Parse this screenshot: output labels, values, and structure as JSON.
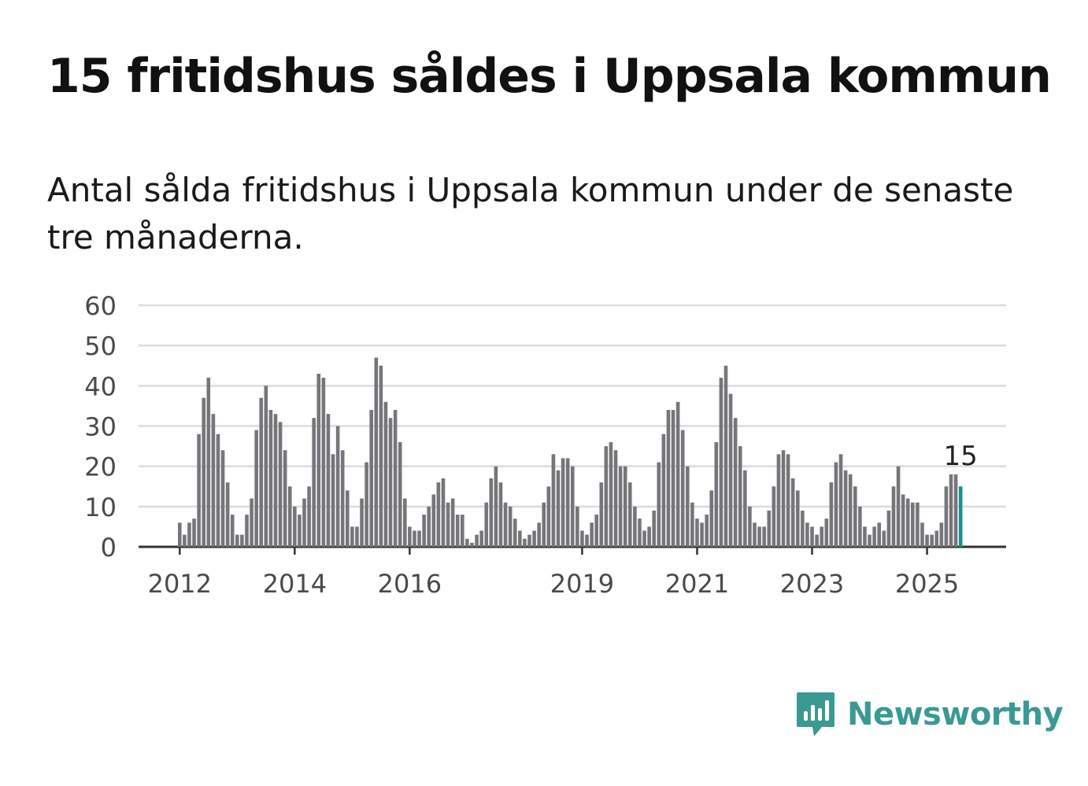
{
  "header": {
    "title": "15 fritidshus såldes i Uppsala kommun",
    "subtitle": "Antal sålda fritidshus i Uppsala kommun under de senaste tre månaderna."
  },
  "brand": {
    "name": "Newsworthy",
    "icon": "newsworthy-logo-icon",
    "color": "#3a9a93"
  },
  "colors": {
    "bar": "#76767a",
    "highlight": "#16938f",
    "grid": "#dcdcdc",
    "axis": "#333333"
  },
  "chart_data": {
    "type": "bar",
    "title": "",
    "xlabel": "",
    "ylabel": "",
    "ylim": [
      0,
      60
    ],
    "yticks": [
      "0",
      "10",
      "20",
      "30",
      "40",
      "50",
      "60"
    ],
    "x_tick_labels": [
      "2012",
      "2014",
      "2016",
      "2019",
      "2021",
      "2023",
      "2025"
    ],
    "grid": true,
    "annotation": {
      "label": "15",
      "target": "last bar"
    },
    "series": [
      {
        "values": [
          6,
          3,
          6,
          7,
          28,
          37,
          42,
          33,
          28,
          24,
          16,
          8,
          3,
          3,
          8,
          12,
          29,
          37,
          40,
          34,
          33,
          31,
          24,
          15,
          10,
          8,
          12,
          15,
          32,
          43,
          42,
          33,
          23,
          30,
          24,
          14,
          5,
          5,
          12,
          21,
          34,
          47,
          45,
          36,
          32,
          34,
          26,
          12,
          5,
          4,
          4,
          8,
          10,
          13,
          16,
          17,
          11,
          12,
          8,
          8,
          2,
          1,
          3,
          4,
          11,
          17,
          20,
          16,
          11,
          10,
          7,
          4,
          2,
          3,
          4,
          6,
          11,
          15,
          23,
          19,
          22,
          22,
          20,
          10,
          4,
          3,
          6,
          8,
          16,
          25,
          26,
          24,
          20,
          20,
          16,
          10,
          7,
          4,
          5,
          9,
          21,
          28,
          34,
          34,
          36,
          29,
          20,
          11,
          7,
          6,
          8,
          14,
          26,
          42,
          45,
          38,
          32,
          25,
          19,
          10,
          6,
          5,
          5,
          9,
          15,
          23,
          24,
          23,
          17,
          14,
          9,
          6,
          5,
          3,
          5,
          7,
          16,
          21,
          23,
          19,
          18,
          15,
          10,
          5,
          3,
          5,
          6,
          4,
          9,
          15,
          20,
          13,
          12,
          11,
          11,
          6,
          3,
          3,
          4,
          6,
          15,
          18,
          18,
          15
        ]
      }
    ]
  }
}
